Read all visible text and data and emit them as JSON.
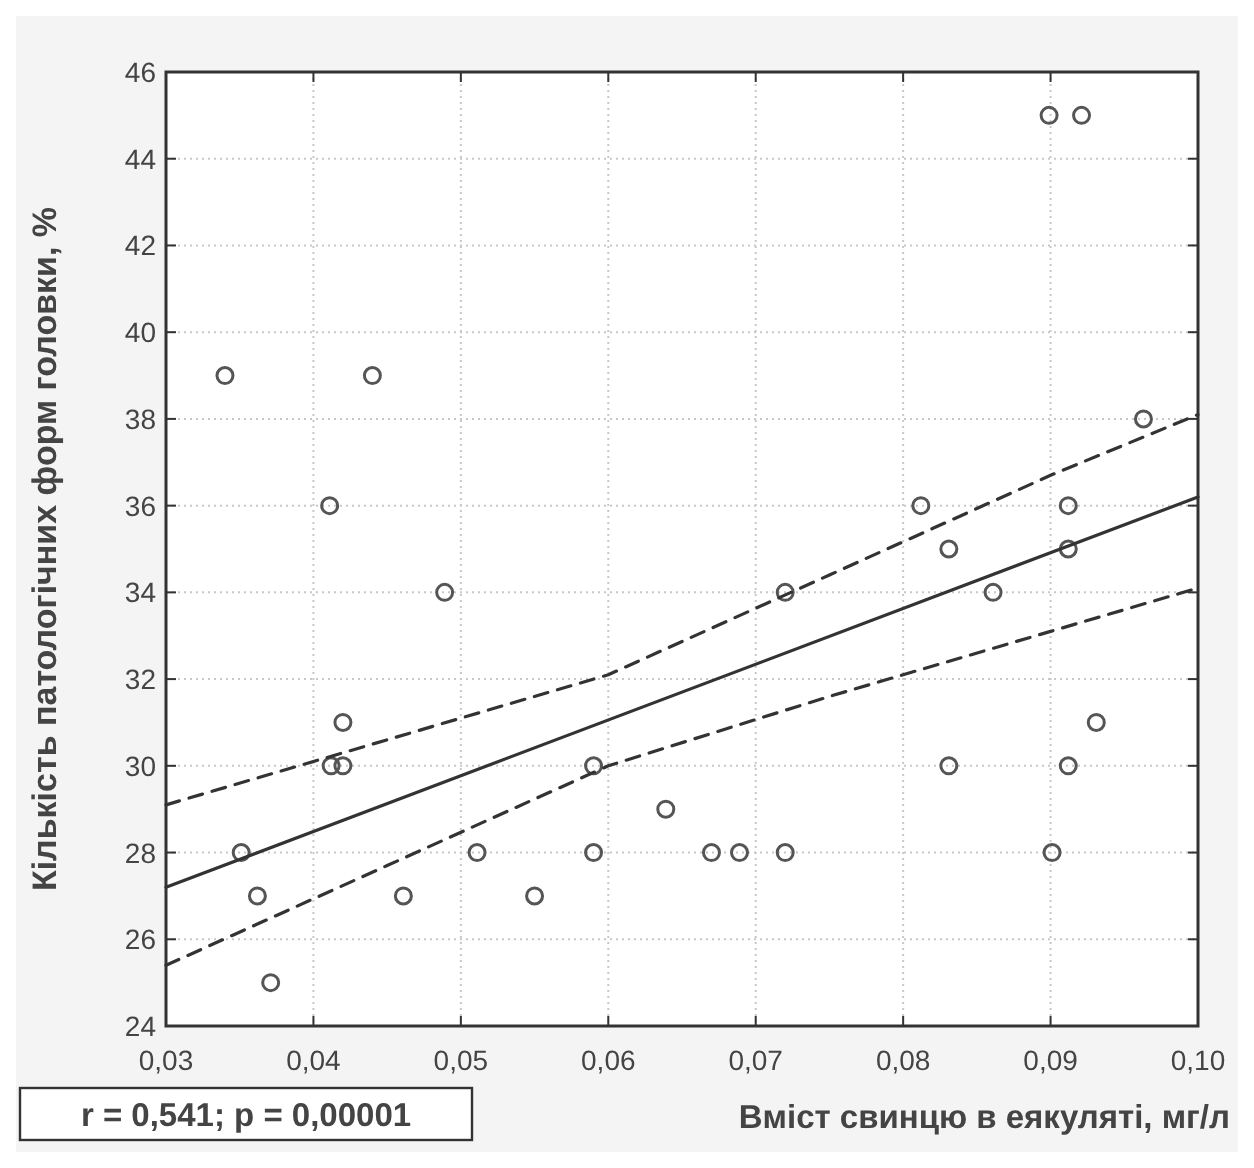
{
  "chart_data": {
    "type": "scatter",
    "xlabel": "Вміст свинцю в еякуляті, мг/л",
    "ylabel": "Кількість патологічних форм головки, %",
    "xlim": [
      0.03,
      0.1
    ],
    "xticks": [
      {
        "value": 0.03,
        "label": "0,03"
      },
      {
        "value": 0.04,
        "label": "0,04"
      },
      {
        "value": 0.05,
        "label": "0,05"
      },
      {
        "value": 0.06,
        "label": "0,06"
      },
      {
        "value": 0.07,
        "label": "0,07"
      },
      {
        "value": 0.08,
        "label": "0,08"
      },
      {
        "value": 0.09,
        "label": "0,09"
      },
      {
        "value": 0.1,
        "label": "0,10"
      }
    ],
    "ylim": [
      24,
      46
    ],
    "yticks": [
      24,
      26,
      28,
      30,
      32,
      34,
      36,
      38,
      40,
      42,
      44,
      46
    ],
    "grid": true,
    "annotations": [
      "r = 0,541; p = 0,00001"
    ],
    "series": [
      {
        "color": "#555555",
        "marker": "circle",
        "x": [
          0.034,
          0.044,
          0.0411,
          0.0489,
          0.0351,
          0.0362,
          0.0371,
          0.0412,
          0.042,
          0.042,
          0.0461,
          0.0511,
          0.055,
          0.059,
          0.059,
          0.0639,
          0.067,
          0.0689,
          0.072,
          0.072,
          0.0812,
          0.0831,
          0.0831,
          0.0861,
          0.0899,
          0.0921,
          0.0912,
          0.0912,
          0.0963,
          0.0901,
          0.0912,
          0.0931
        ],
        "values": [
          39,
          39,
          36,
          34,
          28,
          27,
          25,
          30,
          30,
          31,
          27,
          28,
          27,
          30,
          28,
          29,
          28,
          28,
          28,
          34,
          36,
          35,
          30,
          34,
          45,
          45,
          36,
          35,
          38,
          28,
          30,
          31
        ]
      },
      {
        "type": "line",
        "color": "#333333",
        "line_style": "solid",
        "x": [
          0.03,
          0.1
        ],
        "values": [
          27.2,
          36.2
        ]
      },
      {
        "type": "line",
        "color": "#333333",
        "line_style": "dashed",
        "x": [
          0.03,
          0.045,
          0.06,
          0.075,
          0.09,
          0.1
        ],
        "values": [
          29.1,
          30.6,
          32.1,
          34.4,
          36.7,
          38.1
        ]
      },
      {
        "type": "line",
        "color": "#333333",
        "line_style": "dashed",
        "x": [
          0.03,
          0.045,
          0.06,
          0.075,
          0.09,
          0.1
        ],
        "values": [
          25.4,
          27.7,
          30.0,
          31.6,
          33.1,
          34.1
        ]
      }
    ]
  }
}
